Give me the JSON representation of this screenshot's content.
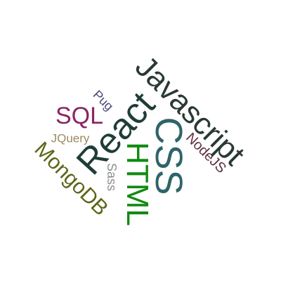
{
  "word_cloud": {
    "words": [
      {
        "key": "javascript",
        "text": "Javascript",
        "color": "#2a3a33"
      },
      {
        "key": "react",
        "text": "React",
        "color": "#1f3d36"
      },
      {
        "key": "css",
        "text": "CSS",
        "color": "#2f6468"
      },
      {
        "key": "html",
        "text": "HTML",
        "color": "#118a12"
      },
      {
        "key": "sql",
        "text": "SQL",
        "color": "#8a2466"
      },
      {
        "key": "mongodb",
        "text": "MongoDB",
        "color": "#5f6418"
      },
      {
        "key": "nodejs",
        "text": "NodeJS",
        "color": "#5e2f42"
      },
      {
        "key": "pug",
        "text": "Pug",
        "color": "#4c4979"
      },
      {
        "key": "jquery",
        "text": "JQuery",
        "color": "#9c8a5f"
      },
      {
        "key": "sass",
        "text": "Sass",
        "color": "#8e8e8e"
      }
    ]
  }
}
